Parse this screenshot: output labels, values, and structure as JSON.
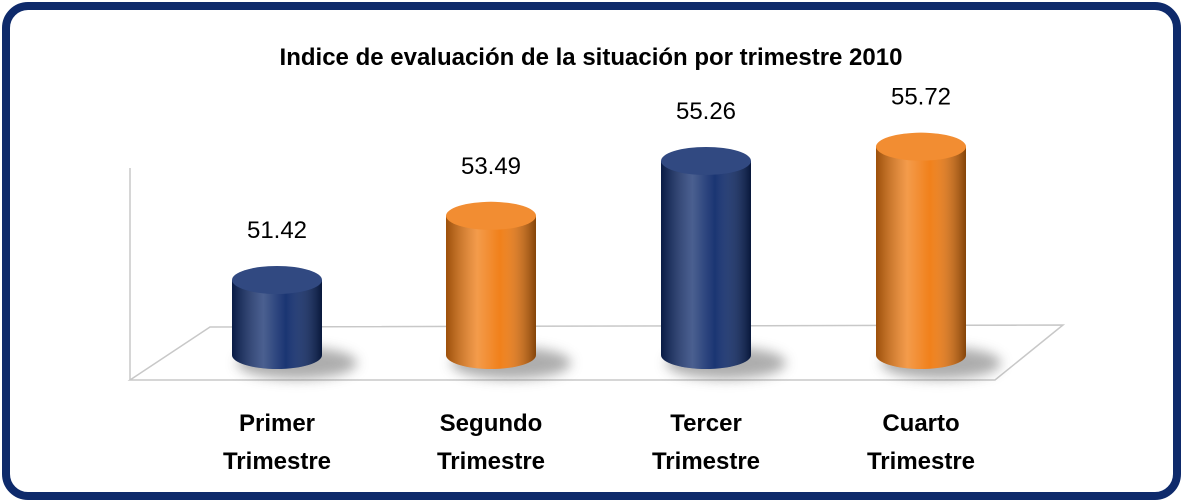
{
  "chart_data": {
    "type": "bar",
    "title": "Indice de evaluación de la situación por trimestre 2010",
    "categories": [
      "Primer Trimestre",
      "Segundo Trimestre",
      "Tercer Trimestre",
      "Cuarto Trimestre"
    ],
    "values": [
      51.42,
      53.49,
      55.26,
      55.72
    ],
    "colors": [
      "#0e2a6b",
      "#f07a0f",
      "#0e2a6b",
      "#f07a0f"
    ],
    "ylim": [
      49,
      57
    ]
  }
}
